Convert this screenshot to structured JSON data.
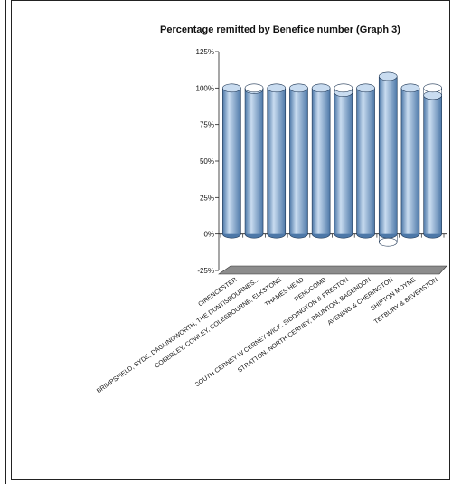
{
  "chart_data": {
    "type": "bar",
    "title": "Percentage remitted by Benefice number (Graph 3)",
    "xlabel": "",
    "ylabel": "",
    "ylim": [
      -25,
      125
    ],
    "yticks": [
      "125%",
      "100%",
      "75%",
      "50%",
      "25%",
      "0%",
      "-25%"
    ],
    "categories": [
      "CIRENCESTER",
      "BRIMPSFIELD, SYDE, DAGLINGWORTH, THE DUNTISBOURNES...",
      "COBERLEY, COWLEY, COLESBOURNE, ELKSTONE",
      "THAMES HEAD",
      "RENDCOMB",
      "SOUTH CERNEY W CERNEY WICK, SIDDINGTON & PRESTON",
      "STRATTON, NORTH CERNEY, BAUNTON, BAGENDON",
      "AVENING & CHERINGTON",
      "SHIPTON MOYNE",
      "TETBURY & BEVERSTON"
    ],
    "values": [
      100,
      99,
      100,
      100,
      100,
      97,
      100,
      108,
      100,
      95
    ],
    "grid": false,
    "style": "3d-cylinder",
    "colors": {
      "bar": "#8fb4dc",
      "bar_dark": "#4d78a8",
      "bar_light": "#c9dcf0",
      "floor": "#8c8c8c"
    }
  }
}
